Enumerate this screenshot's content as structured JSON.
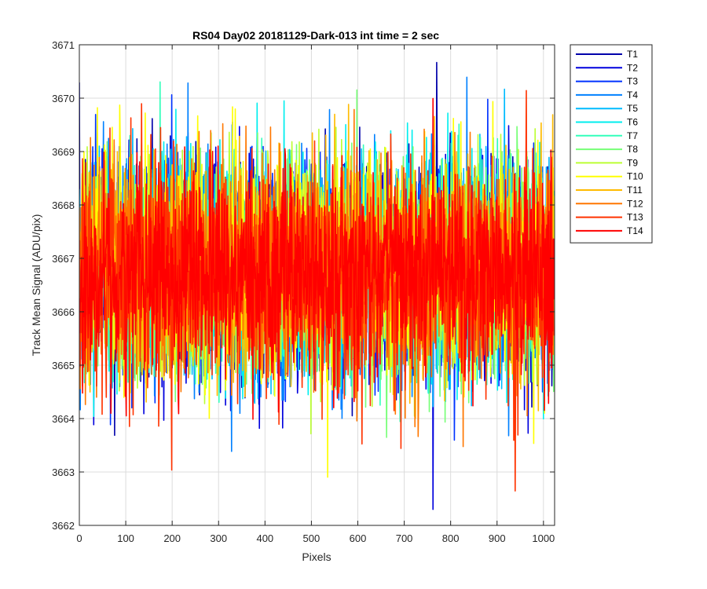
{
  "chart_data": {
    "type": "line",
    "title": "RS04 Day02 20181129-Dark-013 int time = 2 sec",
    "xlabel": "Pixels",
    "ylabel": "Track Mean Signal (ADU/pix)",
    "xlim": [
      0,
      1024
    ],
    "ylim": [
      3662,
      3671
    ],
    "xticks": [
      0,
      100,
      200,
      300,
      400,
      500,
      600,
      700,
      800,
      900,
      1000
    ],
    "yticks": [
      3662,
      3663,
      3664,
      3665,
      3666,
      3667,
      3668,
      3669,
      3670,
      3671
    ],
    "grid": true,
    "legend_position": "outside-top-right",
    "n_points": 1024,
    "series": [
      {
        "name": "T1",
        "color": "#0000AA",
        "mean": 3666.8,
        "std": 1.0,
        "seed": 11
      },
      {
        "name": "T2",
        "color": "#0000DD",
        "mean": 3666.8,
        "std": 1.0,
        "seed": 12
      },
      {
        "name": "T3",
        "color": "#0033FF",
        "mean": 3666.8,
        "std": 1.0,
        "seed": 13
      },
      {
        "name": "T4",
        "color": "#0080FF",
        "mean": 3666.8,
        "std": 1.0,
        "seed": 14
      },
      {
        "name": "T5",
        "color": "#00BBFF",
        "mean": 3666.8,
        "std": 1.0,
        "seed": 15
      },
      {
        "name": "T6",
        "color": "#00EEEE",
        "mean": 3666.8,
        "std": 1.0,
        "seed": 16
      },
      {
        "name": "T7",
        "color": "#33FFBB",
        "mean": 3666.8,
        "std": 1.0,
        "seed": 17
      },
      {
        "name": "T8",
        "color": "#77FF77",
        "mean": 3666.8,
        "std": 1.0,
        "seed": 18
      },
      {
        "name": "T9",
        "color": "#BBFF33",
        "mean": 3666.8,
        "std": 1.0,
        "seed": 19
      },
      {
        "name": "T10",
        "color": "#FFFF00",
        "mean": 3666.8,
        "std": 1.0,
        "seed": 20
      },
      {
        "name": "T11",
        "color": "#FFBB00",
        "mean": 3666.8,
        "std": 1.0,
        "seed": 21
      },
      {
        "name": "T12",
        "color": "#FF7700",
        "mean": 3666.7,
        "std": 1.0,
        "seed": 22
      },
      {
        "name": "T13",
        "color": "#FF3300",
        "mean": 3666.7,
        "std": 1.0,
        "seed": 23
      },
      {
        "name": "T14",
        "color": "#FF0000",
        "mean": 3666.7,
        "std": 0.95,
        "seed": 24
      }
    ]
  }
}
